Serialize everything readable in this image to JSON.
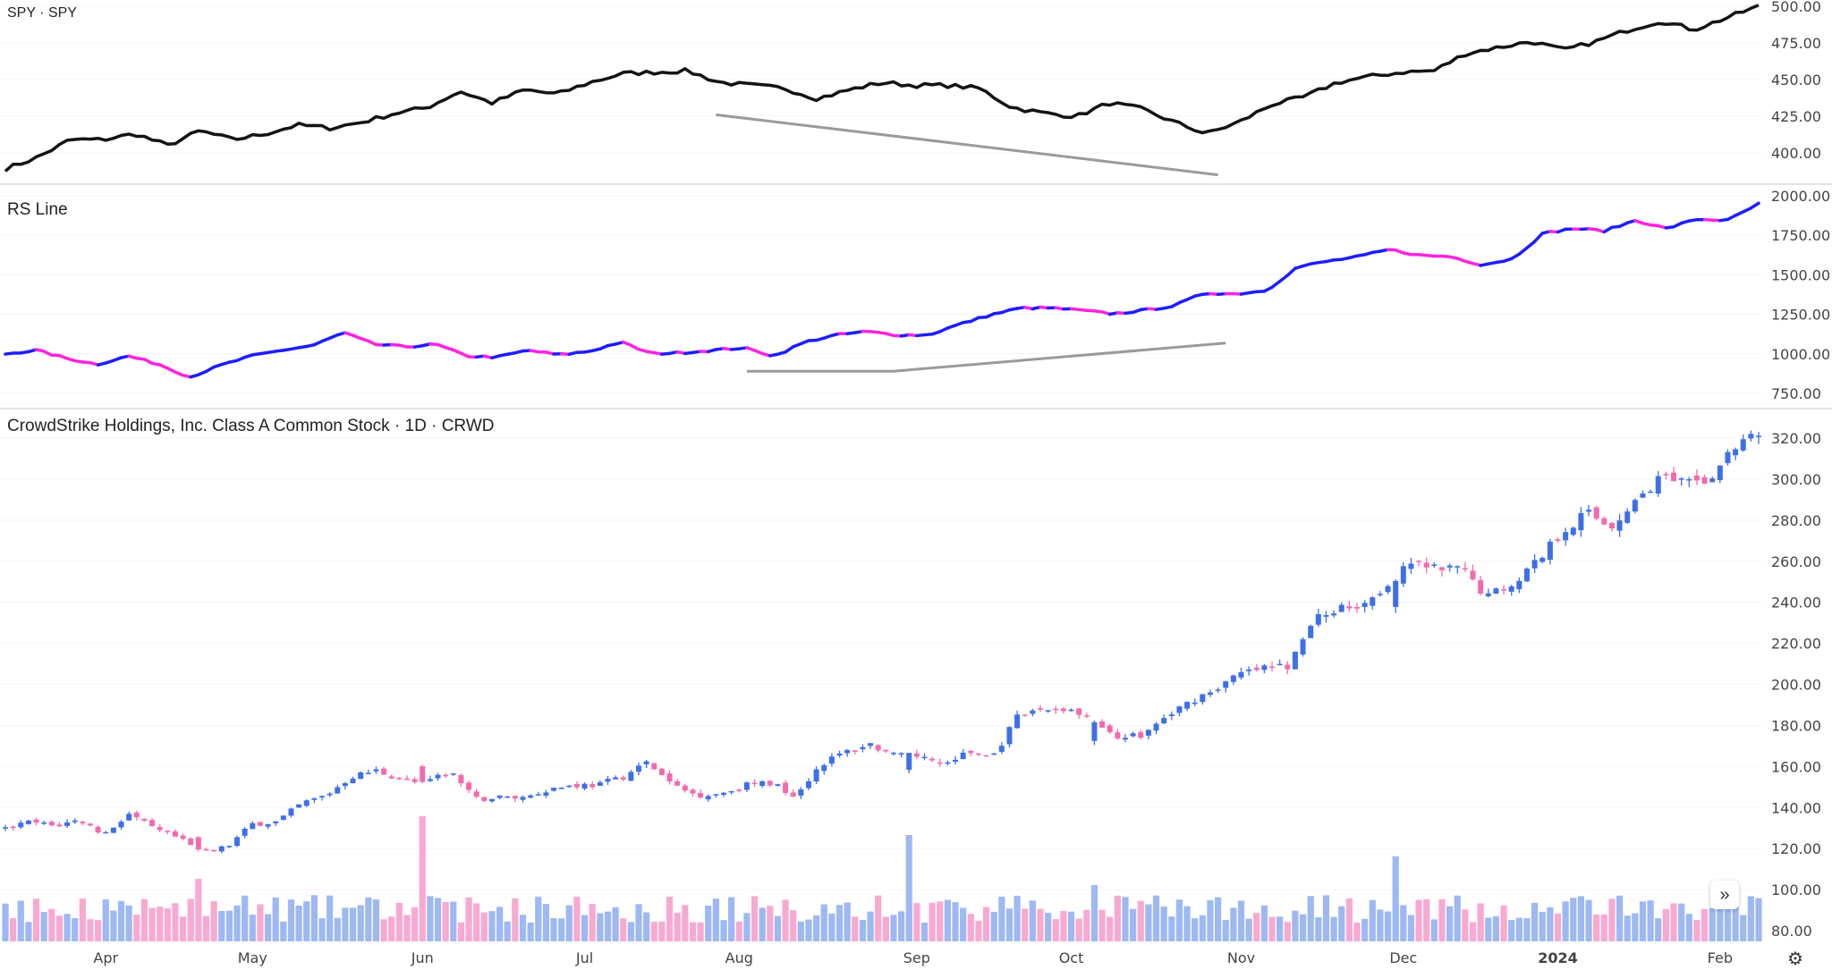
{
  "panes": {
    "spy_title": "SPY · SPY",
    "rs_title": "RS Line",
    "main_title": "CrowdStrike Holdings, Inc. Class A Common Stock · 1D · CRWD"
  },
  "colors": {
    "spy": "#141414",
    "rs_up": "#1d1dff",
    "rs_down": "#ff22e0",
    "candle_up": "#3d6fe8",
    "candle_down": "#f26aae",
    "vol_up": "#9db8f3",
    "vol_down": "#f7a9d2",
    "trendline": "#9a9a9a"
  },
  "chart_data": [
    {
      "type": "line",
      "name": "SPY",
      "title": "SPY · SPY",
      "ylim": [
        385,
        505
      ],
      "yticks": [
        "500.00",
        "475.00",
        "450.00",
        "425.00",
        "400.00"
      ],
      "ytick_values": [
        500,
        475,
        450,
        425,
        400
      ],
      "values": [
        389,
        397,
        409,
        409,
        413,
        405,
        415,
        409,
        413,
        419,
        417,
        421,
        427,
        431,
        442,
        434,
        443,
        440,
        448,
        454,
        455,
        456,
        448,
        446,
        444,
        437,
        443,
        448,
        446,
        446,
        444,
        431,
        427,
        425,
        434,
        430,
        421,
        413,
        421,
        433,
        438,
        448,
        452,
        455,
        456,
        468,
        472,
        476,
        470,
        476,
        484,
        490,
        484,
        492,
        500
      ],
      "trendline": {
        "from_bar": 92,
        "from_value": 426,
        "to_bar": 157,
        "to_value": 385
      }
    },
    {
      "type": "line",
      "name": "RS Line",
      "title": "RS Line",
      "ylim": [
        700,
        2050
      ],
      "yticks": [
        "2000.00",
        "1750.00",
        "1500.00",
        "1250.00",
        "1000.00",
        "750.00"
      ],
      "ytick_values": [
        2000,
        1750,
        1500,
        1250,
        1000,
        750
      ],
      "values": [
        1000,
        1023,
        971,
        934,
        986,
        934,
        853,
        927,
        986,
        1023,
        1053,
        1134,
        1060,
        1045,
        1060,
        986,
        979,
        1023,
        993,
        1016,
        1075,
        1001,
        1008,
        1023,
        1038,
        986,
        1075,
        1119,
        1141,
        1119,
        1119,
        1186,
        1245,
        1290,
        1290,
        1275,
        1253,
        1275,
        1304,
        1386,
        1379,
        1401,
        1549,
        1586,
        1615,
        1660,
        1623,
        1615,
        1563,
        1601,
        1763,
        1793,
        1778,
        1845,
        1793,
        1852,
        1845,
        1948
      ],
      "trendline": {
        "points": [
          {
            "bar": 96,
            "value": 890
          },
          {
            "bar": 115,
            "value": 890
          },
          {
            "bar": 158,
            "value": 1068
          }
        ]
      }
    },
    {
      "type": "candlestick",
      "name": "CRWD",
      "title": "CrowdStrike Holdings, Inc. Class A Common Stock · 1D · CRWD",
      "ylim": [
        75,
        330
      ],
      "yticks": [
        "320.00",
        "300.00",
        "280.00",
        "260.00",
        "240.00",
        "220.00",
        "200.00",
        "180.00",
        "160.00",
        "140.00",
        "120.00",
        "100.00",
        "80.00"
      ],
      "ytick_values": [
        320,
        300,
        280,
        260,
        240,
        220,
        200,
        180,
        160,
        140,
        120,
        100,
        80
      ],
      "bars": 228,
      "closes": [
        129.6,
        133,
        131,
        134,
        127,
        137,
        129.5,
        125,
        118,
        121,
        132,
        133,
        142,
        146,
        155,
        158,
        154,
        151,
        158,
        144,
        145,
        145,
        149,
        151,
        151,
        155,
        162,
        151,
        146,
        147,
        151,
        152,
        146,
        161,
        167,
        171,
        165,
        165,
        161,
        167,
        165,
        184,
        188,
        188,
        182,
        175,
        175,
        184,
        192,
        198,
        205,
        208,
        209,
        232,
        237,
        240,
        249,
        259,
        256,
        256,
        243,
        249,
        260,
        274,
        284,
        277,
        289,
        301,
        297,
        300,
        315,
        322
      ],
      "volume_spikes": [
        {
          "bar": 54,
          "relative": 1.0,
          "direction": "down"
        },
        {
          "bar": 117,
          "relative": 0.85,
          "direction": "up"
        },
        {
          "bar": 180,
          "relative": 0.68,
          "direction": "up"
        },
        {
          "bar": 25,
          "relative": 0.5,
          "direction": "down"
        },
        {
          "bar": 141,
          "relative": 0.45,
          "direction": "up"
        }
      ],
      "x_ticks": [
        {
          "label": "Apr",
          "bar": 13
        },
        {
          "label": "May",
          "bar": 32
        },
        {
          "label": "Jun",
          "bar": 54
        },
        {
          "label": "Jul",
          "bar": 75
        },
        {
          "label": "Aug",
          "bar": 95
        },
        {
          "label": "Sep",
          "bar": 118
        },
        {
          "label": "Oct",
          "bar": 138
        },
        {
          "label": "Nov",
          "bar": 160
        },
        {
          "label": "Dec",
          "bar": 181
        },
        {
          "label": "2024",
          "bar": 201,
          "bold": true
        },
        {
          "label": "Feb",
          "bar": 222
        }
      ]
    }
  ],
  "controls": {
    "scroll_right": "»",
    "settings": "⚙"
  }
}
